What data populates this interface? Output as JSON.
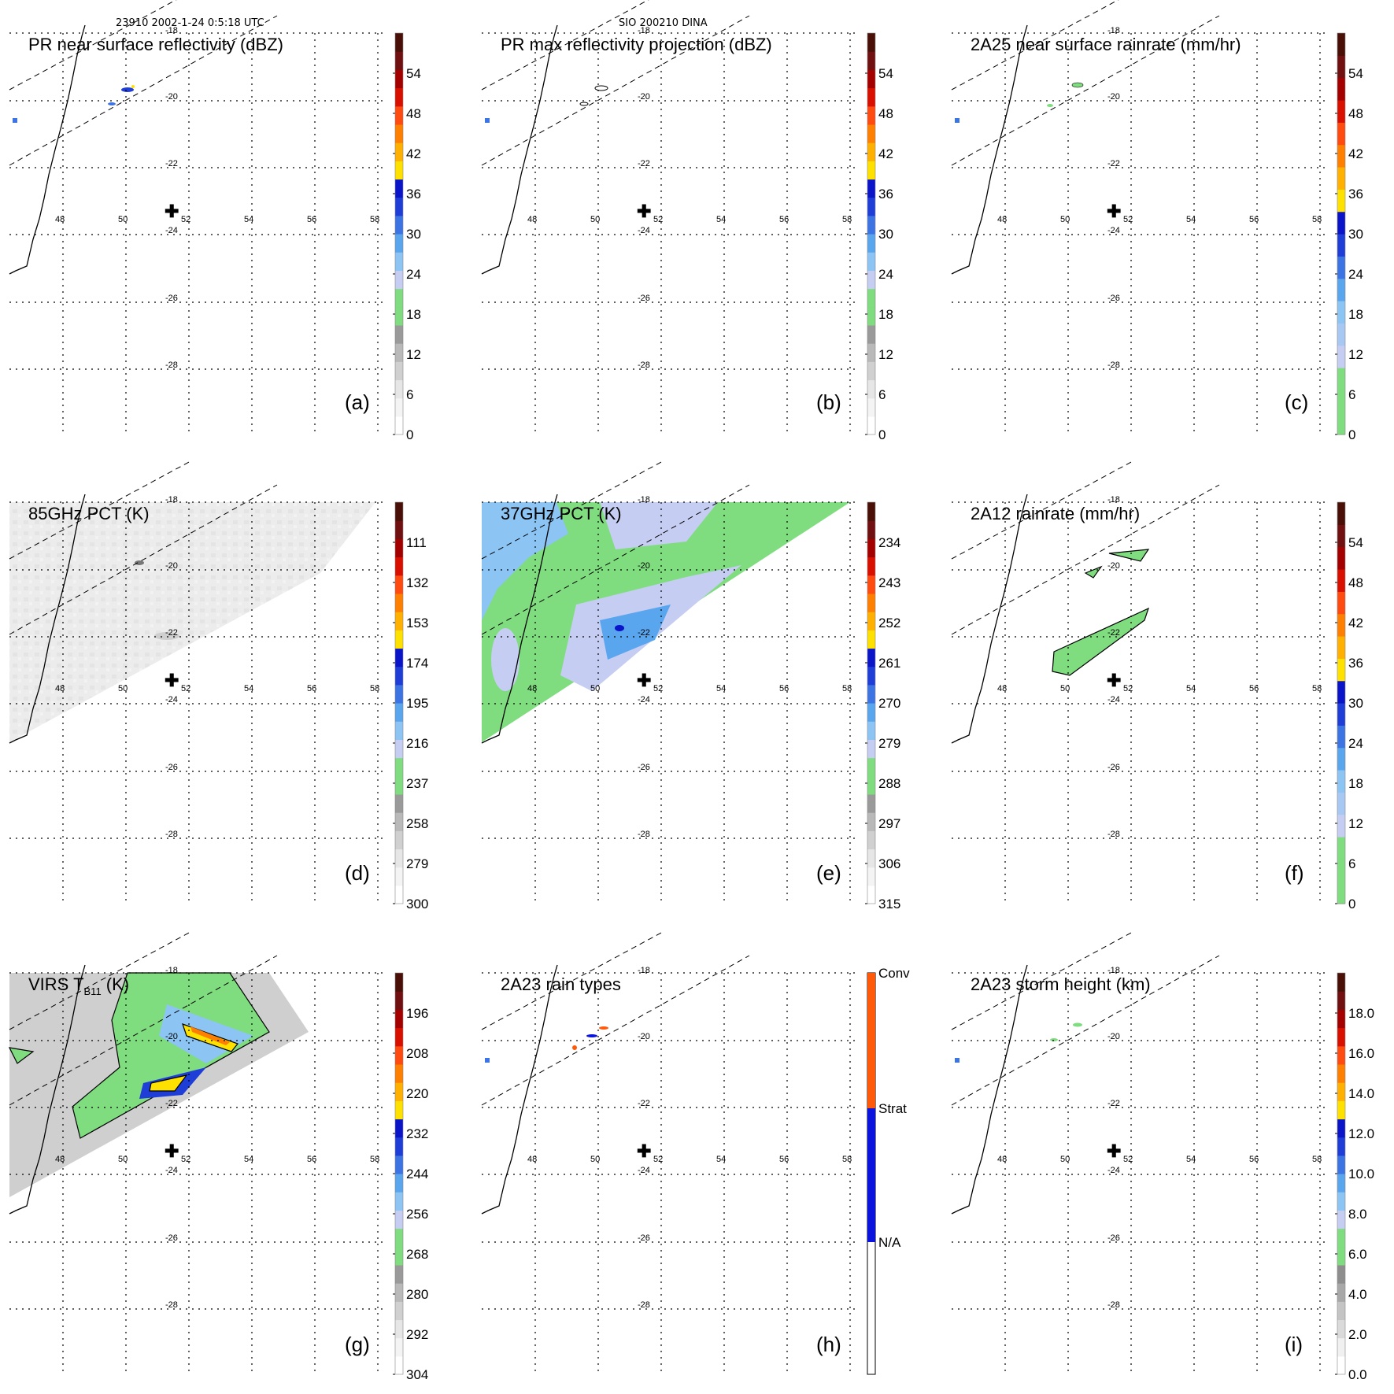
{
  "header": {
    "left": "23910 2002-1-24 0:5:18 UTC",
    "center": "SIO 200210 DINA"
  },
  "map": {
    "lon_ticks": [
      "48",
      "50",
      "52",
      "54",
      "56",
      "58"
    ],
    "lat_ticks": [
      "-18",
      "-20",
      "-22",
      "-24",
      "-26",
      "-28"
    ],
    "storm_center_symbol": "✚"
  },
  "colors": {
    "rain_gray": [
      "#f4f4f4",
      "#dcdcdc",
      "#b5b5b5"
    ],
    "green": "#7fdc7f",
    "blues": [
      "#c6cdf2",
      "#8cc4f4",
      "#5aa6ee",
      "#3d74e4",
      "#1f3ed8",
      "#0a14c8"
    ],
    "warm": [
      "#ffe100",
      "#ffb000",
      "#ff8000",
      "#ff4a10",
      "#d91000",
      "#a50000",
      "#701010",
      "#4a1008"
    ],
    "rain_type": {
      "na": "#ffffff",
      "strat": "#0a14dc",
      "conv": "#ff5a0a"
    }
  },
  "chart_data": [
    {
      "type": "heatmap",
      "panel": "(a)",
      "title": "PR near surface reflectivity (dBZ)",
      "colorbar_ticks": [
        "0",
        "6",
        "12",
        "18",
        "24",
        "30",
        "36",
        "42",
        "48",
        "54"
      ],
      "colorbar_range": [
        0,
        60
      ],
      "colorbar_scheme": "dbz",
      "features": [
        "swath_edges",
        "pr_echoes",
        "west_blob"
      ]
    },
    {
      "type": "heatmap",
      "panel": "(b)",
      "title": "PR max reflectivity projection (dBZ)",
      "colorbar_ticks": [
        "0",
        "6",
        "12",
        "18",
        "24",
        "30",
        "36",
        "42",
        "48",
        "54"
      ],
      "colorbar_range": [
        0,
        60
      ],
      "colorbar_scheme": "dbz",
      "features": [
        "swath_edges",
        "pr_echoes_outline",
        "west_blob"
      ]
    },
    {
      "type": "heatmap",
      "panel": "(c)",
      "title": "2A25 near surface rainrate (mm/hr)",
      "colorbar_ticks": [
        "0",
        "6",
        "12",
        "18",
        "24",
        "30",
        "36",
        "42",
        "48",
        "54"
      ],
      "colorbar_range": [
        0,
        60
      ],
      "colorbar_scheme": "rain",
      "features": [
        "swath_edges",
        "pr_rain_green",
        "west_blob"
      ]
    },
    {
      "type": "heatmap",
      "panel": "(d)",
      "title": "85GHz PCT (K)",
      "colorbar_ticks": [
        "300",
        "279",
        "258",
        "237",
        "216",
        "195",
        "174",
        "153",
        "132",
        "111"
      ],
      "colorbar_range": [
        300,
        90
      ],
      "colorbar_scheme": "tb",
      "features": [
        "tmi_swath_gray",
        "swath_edges"
      ]
    },
    {
      "type": "heatmap",
      "panel": "(e)",
      "title": "37GHz PCT (K)",
      "colorbar_ticks": [
        "315",
        "306",
        "297",
        "288",
        "279",
        "270",
        "261",
        "252",
        "243",
        "234"
      ],
      "colorbar_range": [
        315,
        225
      ],
      "colorbar_scheme": "tb",
      "features": [
        "tmi_swath_37",
        "swath_edges"
      ]
    },
    {
      "type": "heatmap",
      "panel": "(f)",
      "title": "2A12 rainrate (mm/hr)",
      "colorbar_ticks": [
        "0",
        "6",
        "12",
        "18",
        "24",
        "30",
        "36",
        "42",
        "48",
        "54"
      ],
      "colorbar_range": [
        0,
        60
      ],
      "colorbar_scheme": "rain",
      "features": [
        "swath_edges",
        "tmi_rain"
      ]
    },
    {
      "type": "heatmap",
      "panel": "(g)",
      "title": "VIRS T",
      "title_sub": "B11",
      "title_suffix": " (K)",
      "colorbar_ticks": [
        "304",
        "292",
        "280",
        "268",
        "256",
        "244",
        "232",
        "220",
        "208",
        "196"
      ],
      "colorbar_range": [
        304,
        184
      ],
      "colorbar_scheme": "tb",
      "features": [
        "virs_swath",
        "swath_edges"
      ]
    },
    {
      "type": "heatmap",
      "panel": "(h)",
      "title": "2A23 rain types",
      "colorbar_ticks": [
        "N/A",
        "Strat",
        "Conv"
      ],
      "colorbar_scheme": "raintype",
      "features": [
        "swath_edges",
        "rain_types",
        "west_blob"
      ]
    },
    {
      "type": "heatmap",
      "panel": "(i)",
      "title": "2A23 storm height (km)",
      "colorbar_ticks": [
        "0.0",
        "2.0",
        "4.0",
        "6.0",
        "8.0",
        "10.0",
        "12.0",
        "14.0",
        "16.0",
        "18.0"
      ],
      "colorbar_range": [
        0,
        20
      ],
      "colorbar_scheme": "height",
      "features": [
        "swath_edges",
        "storm_height",
        "west_blob"
      ]
    }
  ]
}
